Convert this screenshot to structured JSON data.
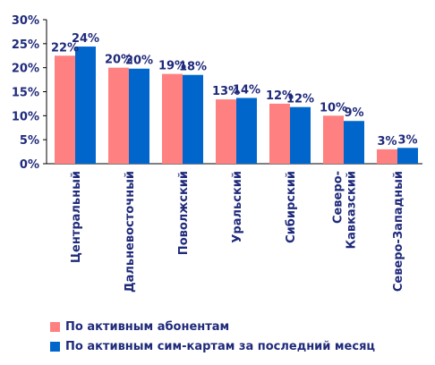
{
  "chart_data": {
    "type": "bar",
    "categories": [
      [
        "Центральный"
      ],
      [
        "Дальневосточный"
      ],
      [
        "Поволжский"
      ],
      [
        "Уральский"
      ],
      [
        "Сибирский"
      ],
      [
        "Северо-",
        "Кавказский"
      ],
      [
        "Северо-Западный"
      ]
    ],
    "series": [
      {
        "name": "По активным абонентам",
        "color": "#ff8080",
        "values": [
          22.5,
          20.0,
          18.7,
          13.4,
          12.5,
          10.0,
          3.0
        ],
        "labels": [
          "22%",
          "20%",
          "19%",
          "13%",
          "12%",
          "10%",
          "3%"
        ]
      },
      {
        "name": "По активным сим-картам за последний месяц",
        "color": "#0066cc",
        "values": [
          24.4,
          19.8,
          18.5,
          13.7,
          11.8,
          8.9,
          3.3
        ],
        "labels": [
          "24%",
          "20%",
          "18%",
          "14%",
          "12%",
          "9%",
          "3%"
        ]
      }
    ],
    "yticks": [
      "0%",
      "5%",
      "10%",
      "15%",
      "20%",
      "25%",
      "30%"
    ],
    "ylim": [
      0,
      30
    ],
    "grid": false,
    "legend_position": "bottom"
  }
}
